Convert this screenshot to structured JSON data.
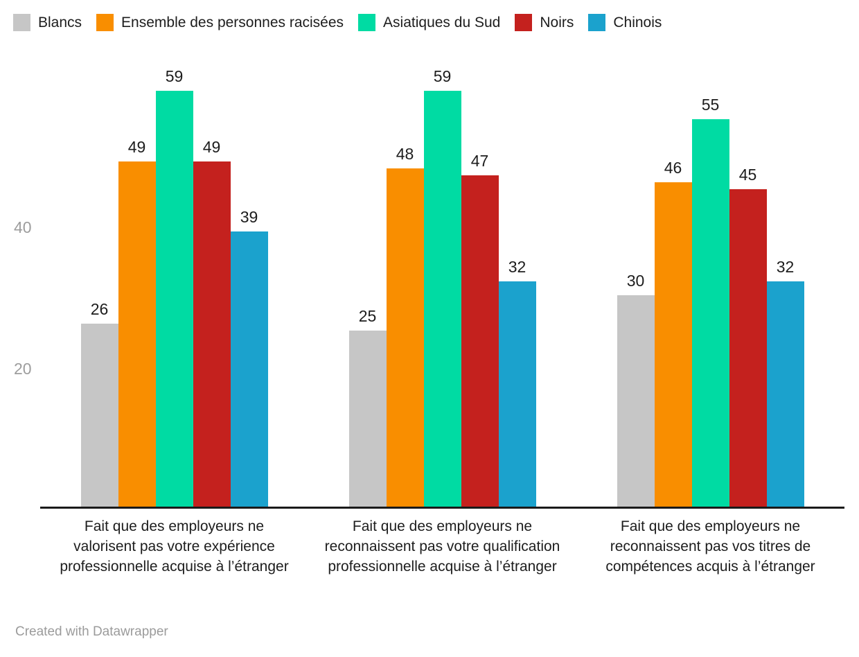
{
  "chart_data": {
    "type": "bar",
    "title": "",
    "xlabel": "",
    "ylabel": "",
    "categories": [
      "Fait que des employeurs ne valorisent pas votre expérience professionnelle acquise à l’étranger",
      "Fait que des employeurs ne reconnaissent pas votre qualification professionnelle acquise à l’étranger",
      "Fait que des employeurs ne reconnaissent pas vos titres de compétences acquis à l’étranger"
    ],
    "series": [
      {
        "name": "Blancs",
        "color": "#c6c6c6",
        "values": [
          26,
          25,
          30
        ]
      },
      {
        "name": "Ensemble des personnes racisées",
        "color": "#f98e00",
        "values": [
          49,
          48,
          46
        ]
      },
      {
        "name": "Asiatiques du Sud",
        "color": "#00dba3",
        "values": [
          59,
          59,
          55
        ]
      },
      {
        "name": "Noirs",
        "color": "#c4211e",
        "values": [
          49,
          47,
          45
        ]
      },
      {
        "name": "Chinois",
        "color": "#1ba2cd",
        "values": [
          39,
          32,
          32
        ]
      }
    ],
    "yticks": [
      20,
      40
    ],
    "ylim": [
      0,
      59
    ],
    "grid": false,
    "value_labels": true,
    "legend_position": "top",
    "axis_color": "#1a1a1a",
    "tick_label_color": "#9d9d9d"
  },
  "footer": {
    "credit": "Created with Datawrapper"
  }
}
